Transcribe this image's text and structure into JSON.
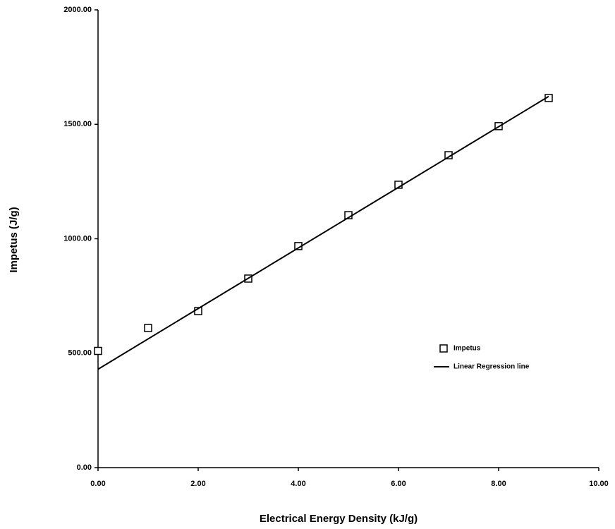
{
  "chart_data": {
    "type": "scatter",
    "x_label": "Electrical Energy Density (kJ/g)",
    "y_label": "Impetus (J/g)",
    "xlim": [
      0,
      10
    ],
    "ylim": [
      0,
      2000
    ],
    "xticks": [
      {
        "value": 0,
        "label": "0.00"
      },
      {
        "value": 2,
        "label": "2.00"
      },
      {
        "value": 4,
        "label": "4.00"
      },
      {
        "value": 6,
        "label": "6.00"
      },
      {
        "value": 8,
        "label": "8.00"
      },
      {
        "value": 10,
        "label": "10.00"
      }
    ],
    "yticks": [
      {
        "value": 0,
        "label": "0.00"
      },
      {
        "value": 500,
        "label": "500.00"
      },
      {
        "value": 1000,
        "label": "1000.00"
      },
      {
        "value": 1500,
        "label": "1500.00"
      },
      {
        "value": 2000,
        "label": "2000.00"
      }
    ],
    "series": [
      {
        "name": "Impetus",
        "type": "scatter",
        "color": "#000000",
        "x": [
          0,
          1,
          2,
          3,
          4,
          5,
          6,
          7,
          8,
          9
        ],
        "values": [
          510,
          610,
          684,
          826,
          968,
          1103,
          1236,
          1365,
          1492,
          1615
        ]
      },
      {
        "name": "Linear Regression line",
        "type": "line",
        "color": "#000000",
        "x": [
          0,
          9
        ],
        "values": [
          430,
          1622
        ]
      }
    ],
    "legend": "right"
  }
}
